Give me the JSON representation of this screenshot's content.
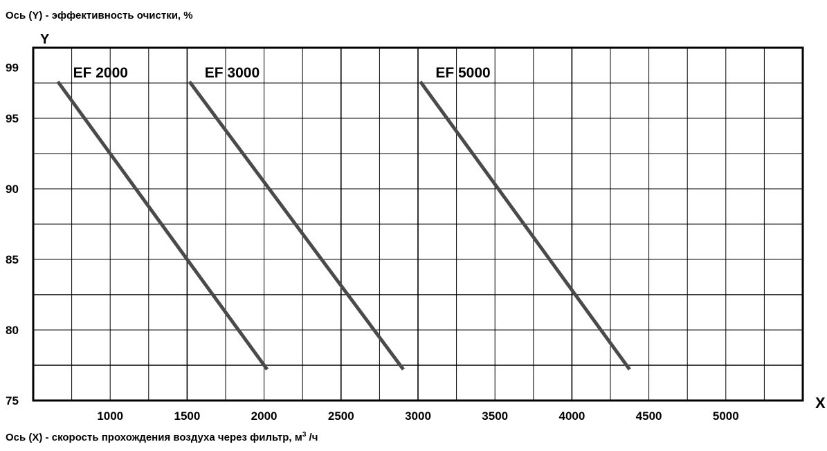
{
  "chart_data": {
    "type": "line",
    "ylabel": "Ось (Y) -  эффективность очистки, %",
    "xlabel": "Ось (X) - скорость прохождения воздуха через фильтр, м",
    "xlabel_superscript": "3",
    "xlabel_unit": " /ч",
    "y_axis_letter": "Y",
    "x_axis_letter": "X",
    "xlim": [
      500,
      5500
    ],
    "ylim": [
      75,
      100
    ],
    "x_ticks": [
      1000,
      1500,
      2000,
      2500,
      3000,
      3500,
      4000,
      4500,
      5000
    ],
    "x_tick_labels": [
      "1000",
      "1500",
      "2000",
      "2500",
      "3000",
      "3500",
      "4000",
      "4500",
      "5000"
    ],
    "y_ticks": [
      75,
      80,
      85,
      90,
      95,
      99
    ],
    "y_tick_labels": [
      "75",
      "80",
      "85",
      "90",
      "95",
      "99"
    ],
    "grid": true,
    "series": [
      {
        "name": "EF 2000",
        "x": [
          660,
          2020
        ],
        "y": [
          97.6,
          77.2
        ]
      },
      {
        "name": "EF 3000",
        "x": [
          1515,
          2905
        ],
        "y": [
          97.6,
          77.2
        ]
      },
      {
        "name": "EF 5000",
        "x": [
          3015,
          4375
        ],
        "y": [
          97.6,
          77.2
        ]
      }
    ],
    "line_color": "#4a4a4a"
  }
}
